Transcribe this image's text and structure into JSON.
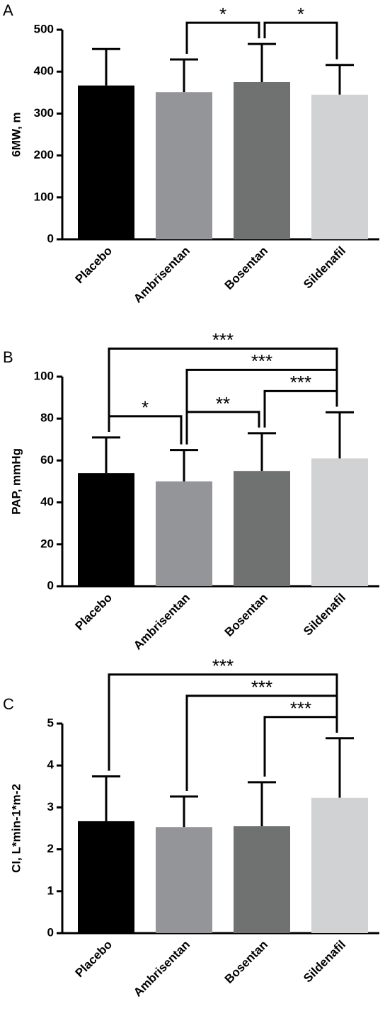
{
  "chart_data": [
    {
      "type": "bar",
      "panel": "A",
      "ylabel": "6MW, m",
      "categories": [
        "Placebo",
        "Ambrisentan",
        "Bosentan",
        "Sildenafil"
      ],
      "values": [
        367,
        351,
        375,
        345
      ],
      "errors": [
        87,
        78,
        91,
        71
      ],
      "colors": [
        "#000000",
        "#939598",
        "#6f7271",
        "#d1d2d4"
      ],
      "ylim": [
        0,
        500
      ],
      "yticks": [
        0,
        100,
        200,
        300,
        400,
        500
      ],
      "brackets": [
        {
          "from": "Ambrisentan",
          "to": "Bosentan",
          "label": "*"
        },
        {
          "from": "Bosentan",
          "to": "Sildenafil",
          "label": "*"
        }
      ]
    },
    {
      "type": "bar",
      "panel": "B",
      "ylabel": "PAP, mmHg",
      "categories": [
        "Placebo",
        "Ambrisentan",
        "Bosentan",
        "Sildenafil"
      ],
      "values": [
        54,
        50,
        55,
        61
      ],
      "errors": [
        17,
        15,
        18,
        22
      ],
      "colors": [
        "#000000",
        "#939598",
        "#6f7271",
        "#d1d2d4"
      ],
      "ylim": [
        0,
        100
      ],
      "yticks": [
        0,
        20,
        40,
        60,
        80,
        100
      ],
      "brackets": [
        {
          "from": "Ambrisentan",
          "to": "Bosentan",
          "label": "**"
        },
        {
          "from": "Bosentan",
          "to": "Sildenafil",
          "label": "***"
        },
        {
          "from": "Ambrisentan",
          "to": "Sildenafil",
          "label": "***"
        },
        {
          "from": "Placebo",
          "to": "Ambrisentan",
          "label": "*"
        },
        {
          "from": "Placebo",
          "to": "Sildenafil",
          "label": "***"
        }
      ]
    },
    {
      "type": "bar",
      "panel": "C",
      "ylabel": "CI, L*min-1*m-2",
      "categories": [
        "Placebo",
        "Ambrisentan",
        "Bosentan",
        "Sildenafil"
      ],
      "values": [
        2.67,
        2.53,
        2.55,
        3.23
      ],
      "errors": [
        1.07,
        0.73,
        1.05,
        1.42
      ],
      "colors": [
        "#000000",
        "#939598",
        "#6f7271",
        "#d1d2d4"
      ],
      "ylim": [
        0,
        5
      ],
      "yticks": [
        0,
        1,
        2,
        3,
        4,
        5
      ],
      "brackets": [
        {
          "from": "Bosentan",
          "to": "Sildenafil",
          "label": "***"
        },
        {
          "from": "Ambrisentan",
          "to": "Sildenafil",
          "label": "***"
        },
        {
          "from": "Placebo",
          "to": "Sildenafil",
          "label": "***"
        }
      ]
    }
  ]
}
